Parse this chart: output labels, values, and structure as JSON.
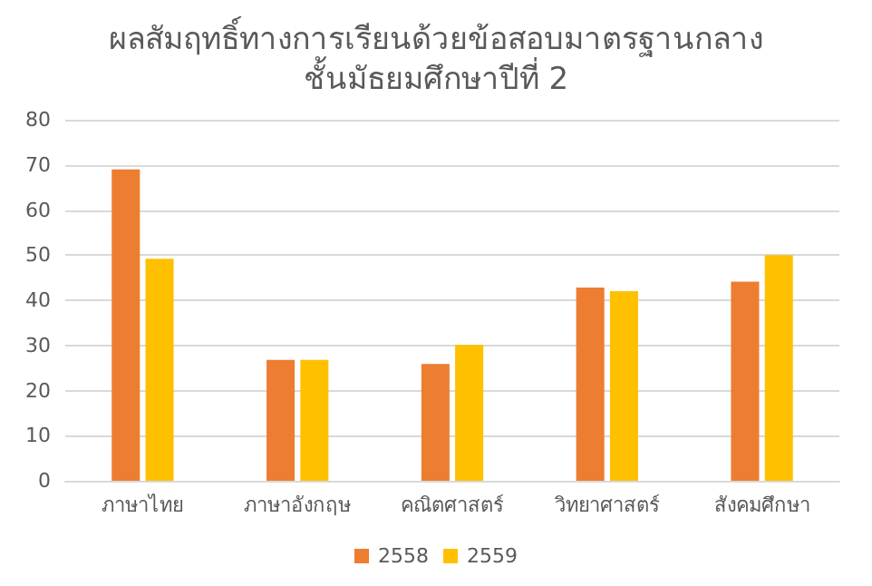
{
  "chart_data": {
    "type": "bar",
    "title": "ผลสัมฤทธิ์ทางการเรียนด้วยข้อสอบมาตรฐานกลาง\nชั้นมัธยมศึกษาปีที่ 2",
    "categories": [
      "ภาษาไทย",
      "ภาษาอังกฤษ",
      "คณิตศาสตร์",
      "วิทยาศาสตร์",
      "สังคมศึกษา"
    ],
    "series": [
      {
        "name": "2558",
        "color": "#ed7d31",
        "values": [
          69,
          26.8,
          25.9,
          42.8,
          44.1
        ]
      },
      {
        "name": "2559",
        "color": "#ffc000",
        "values": [
          49.2,
          26.8,
          30.1,
          42,
          50
        ]
      }
    ],
    "ylim": [
      0,
      80
    ],
    "yticks": [
      0,
      10,
      20,
      30,
      40,
      50,
      60,
      70,
      80
    ],
    "grid": "y",
    "legend": "bottom"
  }
}
